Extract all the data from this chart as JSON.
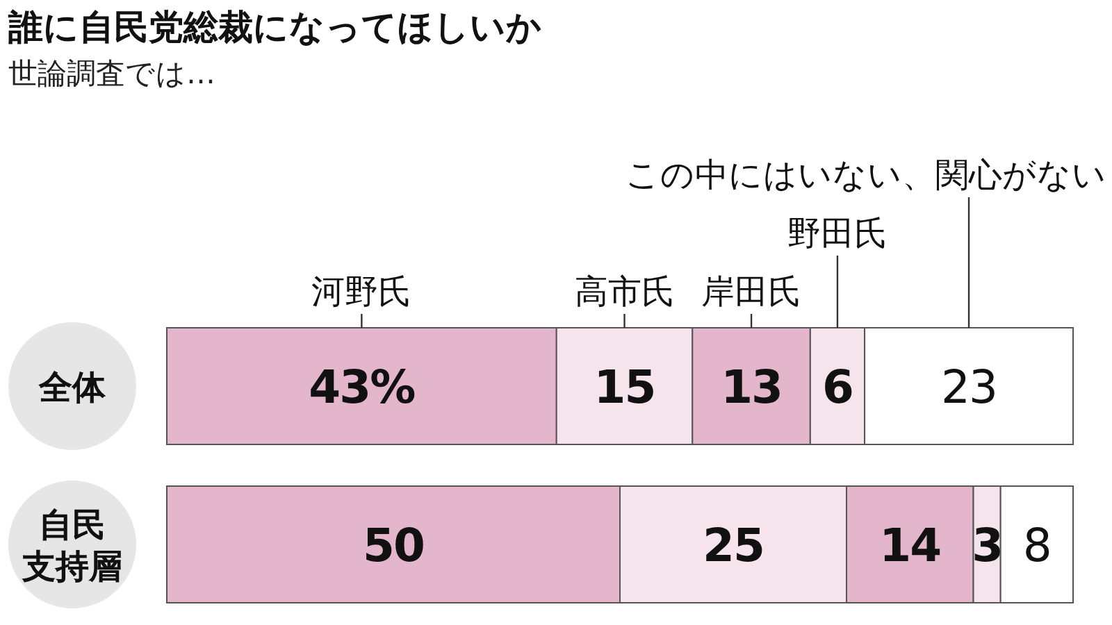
{
  "chart_data": {
    "type": "bar",
    "orientation": "horizontal",
    "stacked": true,
    "title": "誰に自民党総裁になってほしいか",
    "subtitle": "世論調査では…",
    "categories": [
      "全体",
      "自民支持層"
    ],
    "xlim": [
      0,
      100
    ],
    "tick_labels": "y",
    "series": [
      {
        "name": "河野氏",
        "color": "#e3b6cb",
        "values": [
          43,
          50
        ],
        "value_labels": [
          "43%",
          "50"
        ]
      },
      {
        "name": "高市氏",
        "color": "#f6e4ec",
        "values": [
          15,
          25
        ],
        "value_labels": [
          "15",
          "25"
        ]
      },
      {
        "name": "岸田氏",
        "color": "#e3b6cb",
        "values": [
          13,
          14
        ],
        "value_labels": [
          "13",
          "14"
        ]
      },
      {
        "name": "野田氏",
        "color": "#f6e4ec",
        "values": [
          6,
          3
        ],
        "value_labels": [
          "6",
          "3"
        ]
      },
      {
        "name": "この中にはいない、関心がない",
        "color": "#ffffff",
        "values": [
          23,
          8
        ],
        "value_labels": [
          "23",
          "8"
        ]
      }
    ]
  }
}
